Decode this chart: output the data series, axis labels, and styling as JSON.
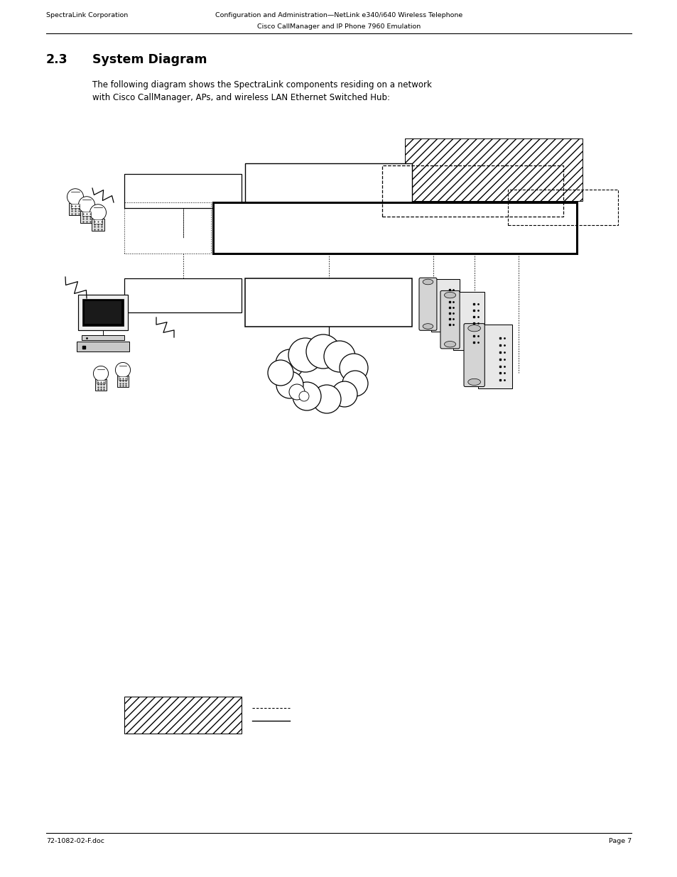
{
  "page_width": 9.54,
  "page_height": 12.35,
  "bg_color": "#ffffff",
  "header_left": "SpectraLink Corporation",
  "header_right_line1": "Configuration and Administration—NetLink e340/i640 Wireless Telephone",
  "header_right_line2": "Cisco CallManager and IP Phone 7960 Emulation",
  "footer_left": "72-1082-02-F.doc",
  "footer_right": "Page 7",
  "section_number": "2.3",
  "section_title": "System Diagram",
  "body_text_line1": "The following diagram shows the SpectraLink components residing on a network",
  "body_text_line2": "with Cisco CallManager, APs, and wireless LAN Ethernet Switched Hub:"
}
